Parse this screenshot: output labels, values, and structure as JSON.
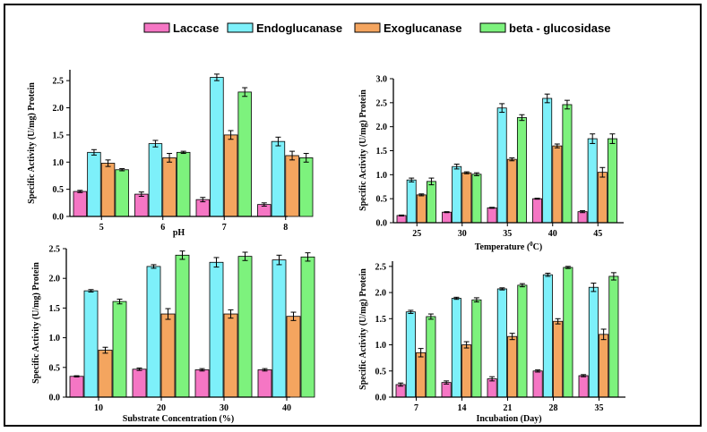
{
  "legend": {
    "items": [
      {
        "label": "Laccase",
        "color": "#f576c4"
      },
      {
        "label": "Endoglucanase",
        "color": "#7df0fa"
      },
      {
        "label": "Exoglucanase",
        "color": "#f4a55f"
      },
      {
        "label": "beta - glucosidase",
        "color": "#7df27d"
      }
    ]
  },
  "chart_data": [
    {
      "type": "bar",
      "categories": [
        "5",
        "6",
        "7",
        "8"
      ],
      "xlabel": "pH",
      "ylabel": "Specific Activity (U/mg) Protein",
      "ylim": [
        0,
        2.7
      ],
      "yticks": [
        "0.0",
        "0.5",
        "1.0",
        "1.5",
        "2.0",
        "2.5"
      ],
      "series": [
        {
          "name": "Laccase",
          "values": [
            0.46,
            0.41,
            0.31,
            0.22
          ],
          "errors": [
            0.02,
            0.04,
            0.04,
            0.03
          ]
        },
        {
          "name": "Endoglucanase",
          "values": [
            1.18,
            1.34,
            2.56,
            1.38
          ],
          "errors": [
            0.05,
            0.06,
            0.06,
            0.08
          ]
        },
        {
          "name": "Exoglucanase",
          "values": [
            0.98,
            1.08,
            1.5,
            1.12
          ],
          "errors": [
            0.06,
            0.08,
            0.08,
            0.08
          ]
        },
        {
          "name": "beta - glucosidase",
          "values": [
            0.86,
            1.18,
            2.29,
            1.08
          ],
          "errors": [
            0.02,
            0.02,
            0.08,
            0.08
          ]
        }
      ]
    },
    {
      "type": "bar",
      "categories": [
        "25",
        "30",
        "35",
        "40",
        "45"
      ],
      "xlabel": "Temperature",
      "xlabel_unit_sup": "0",
      "xlabel_unit": "C",
      "ylabel": "Specific Activity (U/mg) Protein",
      "ylim": [
        0,
        3.0
      ],
      "yticks": [
        "0.0",
        "0.5",
        "1.0",
        "1.5",
        "2.0",
        "2.5",
        "3.0"
      ],
      "series": [
        {
          "name": "Laccase",
          "values": [
            0.15,
            0.22,
            0.31,
            0.5,
            0.23
          ],
          "errors": [
            0.01,
            0.01,
            0.01,
            0.01,
            0.02
          ]
        },
        {
          "name": "Endoglucanase",
          "values": [
            0.89,
            1.17,
            2.39,
            2.59,
            1.75
          ],
          "errors": [
            0.04,
            0.05,
            0.09,
            0.09,
            0.1
          ]
        },
        {
          "name": "Exoglucanase",
          "values": [
            0.58,
            1.04,
            1.32,
            1.6,
            1.05
          ],
          "errors": [
            0.02,
            0.02,
            0.03,
            0.04,
            0.1
          ]
        },
        {
          "name": "beta - glucosidase",
          "values": [
            0.86,
            1.01,
            2.19,
            2.46,
            1.75
          ],
          "errors": [
            0.07,
            0.03,
            0.06,
            0.09,
            0.1
          ]
        }
      ]
    },
    {
      "type": "bar",
      "categories": [
        "10",
        "20",
        "30",
        "40"
      ],
      "xlabel": "Substrate  Concentration (%)",
      "ylabel": "Specific Activity (U/mg) Protein",
      "ylim": [
        0,
        2.5
      ],
      "yticks": [
        "0.0",
        "0.5",
        "1.0",
        "1.5",
        "2.0",
        "2.5"
      ],
      "series": [
        {
          "name": "Laccase",
          "values": [
            0.35,
            0.47,
            0.46,
            0.46
          ],
          "errors": [
            0.01,
            0.02,
            0.02,
            0.02
          ]
        },
        {
          "name": "Endoglucanase",
          "values": [
            1.79,
            2.2,
            2.27,
            2.31
          ],
          "errors": [
            0.02,
            0.03,
            0.08,
            0.08
          ]
        },
        {
          "name": "Exoglucanase",
          "values": [
            0.79,
            1.4,
            1.4,
            1.36
          ],
          "errors": [
            0.05,
            0.09,
            0.07,
            0.07
          ]
        },
        {
          "name": "beta - glucosidase",
          "values": [
            1.61,
            2.39,
            2.37,
            2.36
          ],
          "errors": [
            0.04,
            0.07,
            0.07,
            0.07
          ]
        }
      ]
    },
    {
      "type": "bar",
      "categories": [
        "7",
        "14",
        "21",
        "28",
        "35"
      ],
      "xlabel": "Incubation (Day)",
      "ylabel": "Specific Activity (U/mg) Protein",
      "ylim": [
        0,
        2.6
      ],
      "yticks": [
        "0.0",
        "0.5",
        "1.0",
        "1.5",
        "2.0",
        "2.5"
      ],
      "series": [
        {
          "name": "Laccase",
          "values": [
            0.24,
            0.28,
            0.35,
            0.5,
            0.41
          ],
          "errors": [
            0.03,
            0.03,
            0.04,
            0.02,
            0.02
          ]
        },
        {
          "name": "Endoglucanase",
          "values": [
            1.63,
            1.89,
            2.07,
            2.34,
            2.1
          ],
          "errors": [
            0.03,
            0.02,
            0.02,
            0.03,
            0.08
          ]
        },
        {
          "name": "Exoglucanase",
          "values": [
            0.85,
            1.0,
            1.16,
            1.45,
            1.2
          ],
          "errors": [
            0.08,
            0.06,
            0.06,
            0.05,
            0.1
          ]
        },
        {
          "name": "beta - glucosidase",
          "values": [
            1.54,
            1.86,
            2.14,
            2.48,
            2.31
          ],
          "errors": [
            0.05,
            0.04,
            0.03,
            0.02,
            0.07
          ]
        }
      ]
    }
  ]
}
